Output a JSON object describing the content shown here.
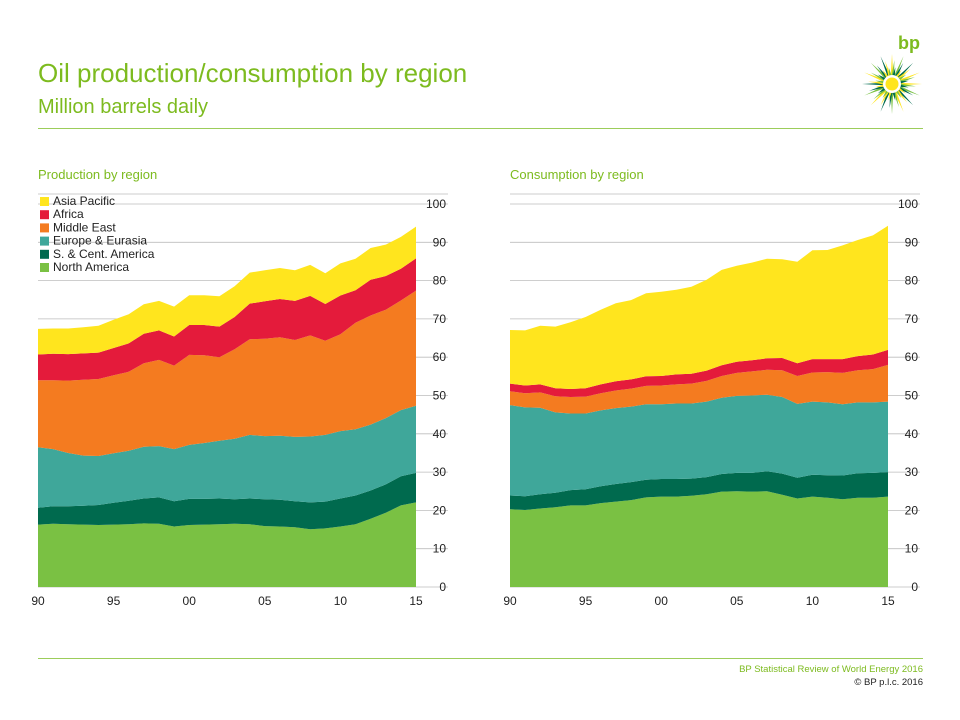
{
  "header": {
    "title": "Oil production/consumption by region",
    "subtitle": "Million barrels daily",
    "logo_text": "bp"
  },
  "footer": {
    "source": "BP Statistical Review of World Energy 2016",
    "copyright": "© BP p.l.c. 2016"
  },
  "colors": {
    "brand_green": "#7dbb1f",
    "north_america": "#7ac143",
    "sc_america": "#006a4e",
    "europe_eurasia": "#3fa79a",
    "middle_east": "#f47b20",
    "africa": "#e41b3b",
    "asia_pacific": "#ffe51e"
  },
  "chart_data": [
    {
      "type": "area",
      "stacked": true,
      "title": "Production by region",
      "x_tick_labels": [
        "90",
        "95",
        "00",
        "05",
        "10",
        "15"
      ],
      "y_tick_labels": [
        "0",
        "10",
        "20",
        "30",
        "40",
        "50",
        "60",
        "70",
        "80",
        "90",
        "100"
      ],
      "ylim": [
        0,
        100
      ],
      "xlim": [
        1990,
        2015
      ],
      "grid": true,
      "legend_position": "top-left",
      "x": [
        1990,
        1991,
        1992,
        1993,
        1994,
        1995,
        1996,
        1997,
        1998,
        1999,
        2000,
        2001,
        2002,
        2003,
        2004,
        2005,
        2006,
        2007,
        2008,
        2009,
        2010,
        2011,
        2012,
        2013,
        2014,
        2015
      ],
      "series": [
        {
          "name": "North America",
          "color": "#7ac143",
          "values": [
            16.3,
            16.5,
            16.4,
            16.3,
            16.2,
            16.3,
            16.4,
            16.6,
            16.5,
            15.8,
            16.2,
            16.3,
            16.4,
            16.5,
            16.4,
            15.9,
            15.8,
            15.6,
            15.1,
            15.3,
            15.8,
            16.4,
            17.8,
            19.4,
            21.3,
            22.1
          ]
        },
        {
          "name": "S. & Cent. America",
          "color": "#006a4e",
          "values": [
            4.4,
            4.6,
            4.7,
            4.9,
            5.2,
            5.7,
            6.1,
            6.5,
            6.9,
            6.6,
            6.8,
            6.7,
            6.7,
            6.4,
            6.7,
            7.0,
            7.0,
            6.8,
            7.0,
            7.0,
            7.3,
            7.5,
            7.4,
            7.4,
            7.6,
            7.7
          ]
        },
        {
          "name": "Europe & Eurasia",
          "color": "#3fa79a",
          "values": [
            15.8,
            14.9,
            13.9,
            13.1,
            12.8,
            12.9,
            13.1,
            13.5,
            13.4,
            13.6,
            14.1,
            14.6,
            15.1,
            15.8,
            16.6,
            16.5,
            16.7,
            16.8,
            17.2,
            17.4,
            17.6,
            17.3,
            17.2,
            17.3,
            17.3,
            17.5
          ]
        },
        {
          "name": "Middle East",
          "color": "#f47b20",
          "values": [
            17.5,
            18.0,
            18.9,
            19.8,
            20.1,
            20.4,
            20.6,
            21.8,
            22.5,
            21.8,
            23.5,
            22.9,
            21.8,
            23.4,
            25.0,
            25.4,
            25.7,
            25.3,
            26.4,
            24.6,
            25.3,
            27.8,
            28.5,
            28.3,
            28.6,
            30.1
          ]
        },
        {
          "name": "Africa",
          "color": "#e41b3b",
          "values": [
            6.7,
            6.9,
            6.9,
            6.9,
            6.9,
            7.1,
            7.4,
            7.7,
            7.7,
            7.6,
            7.8,
            7.9,
            8.0,
            8.4,
            9.3,
            9.8,
            10.0,
            10.2,
            10.3,
            9.6,
            10.1,
            8.5,
            9.3,
            8.8,
            8.3,
            8.4
          ]
        },
        {
          "name": "Asia Pacific",
          "color": "#ffe51e",
          "values": [
            6.7,
            6.6,
            6.7,
            6.8,
            7.0,
            7.4,
            7.6,
            7.7,
            7.7,
            7.8,
            7.8,
            7.8,
            7.9,
            8.0,
            8.1,
            8.1,
            8.1,
            8.0,
            8.1,
            8.0,
            8.4,
            8.2,
            8.3,
            8.2,
            8.3,
            8.3
          ]
        }
      ]
    },
    {
      "type": "area",
      "stacked": true,
      "title": "Consumption by region",
      "x_tick_labels": [
        "90",
        "95",
        "00",
        "05",
        "10",
        "15"
      ],
      "y_tick_labels": [
        "0",
        "10",
        "20",
        "30",
        "40",
        "50",
        "60",
        "70",
        "80",
        "90",
        "100"
      ],
      "ylim": [
        0,
        100
      ],
      "xlim": [
        1990,
        2015
      ],
      "grid": true,
      "legend_position": "none",
      "x": [
        1990,
        1991,
        1992,
        1993,
        1994,
        1995,
        1996,
        1997,
        1998,
        1999,
        2000,
        2001,
        2002,
        2003,
        2004,
        2005,
        2006,
        2007,
        2008,
        2009,
        2010,
        2011,
        2012,
        2013,
        2014,
        2015
      ],
      "series": [
        {
          "name": "North America",
          "color": "#7ac143",
          "values": [
            20.3,
            20.1,
            20.5,
            20.8,
            21.3,
            21.3,
            21.9,
            22.3,
            22.7,
            23.4,
            23.6,
            23.6,
            23.8,
            24.2,
            24.9,
            25.0,
            24.9,
            25.0,
            24.1,
            23.1,
            23.6,
            23.3,
            22.9,
            23.3,
            23.3,
            23.6
          ]
        },
        {
          "name": "S. & Cent. America",
          "color": "#006a4e",
          "values": [
            3.6,
            3.6,
            3.7,
            3.8,
            4.0,
            4.2,
            4.4,
            4.6,
            4.7,
            4.6,
            4.6,
            4.6,
            4.5,
            4.5,
            4.6,
            4.8,
            4.9,
            5.2,
            5.5,
            5.4,
            5.7,
            5.9,
            6.2,
            6.4,
            6.5,
            6.4
          ]
        },
        {
          "name": "Europe & Eurasia",
          "color": "#3fa79a",
          "values": [
            23.6,
            23.2,
            22.6,
            21.0,
            20.0,
            19.8,
            19.8,
            19.8,
            19.7,
            19.7,
            19.5,
            19.7,
            19.6,
            19.7,
            19.9,
            20.1,
            20.2,
            20.0,
            20.0,
            19.3,
            19.1,
            19.0,
            18.6,
            18.5,
            18.4,
            18.4
          ]
        },
        {
          "name": "Middle East",
          "color": "#f47b20",
          "values": [
            3.6,
            3.7,
            4.0,
            4.2,
            4.3,
            4.4,
            4.5,
            4.6,
            4.7,
            4.8,
            4.9,
            5.0,
            5.2,
            5.4,
            5.7,
            6.0,
            6.3,
            6.5,
            7.0,
            7.3,
            7.6,
            7.9,
            8.2,
            8.4,
            8.7,
            9.6
          ]
        },
        {
          "name": "Africa",
          "color": "#e41b3b",
          "values": [
            2.0,
            2.0,
            2.1,
            2.1,
            2.1,
            2.2,
            2.3,
            2.4,
            2.4,
            2.5,
            2.5,
            2.6,
            2.6,
            2.7,
            2.8,
            2.9,
            2.9,
            3.0,
            3.2,
            3.3,
            3.5,
            3.4,
            3.6,
            3.7,
            3.8,
            3.9
          ]
        },
        {
          "name": "Asia Pacific",
          "color": "#ffe51e",
          "values": [
            14.0,
            14.4,
            15.3,
            16.1,
            17.4,
            18.6,
            19.5,
            20.4,
            20.7,
            21.7,
            22.0,
            22.1,
            22.7,
            23.7,
            24.9,
            25.1,
            25.5,
            26.0,
            25.8,
            26.5,
            28.4,
            28.5,
            29.7,
            30.3,
            31.1,
            32.4
          ]
        }
      ]
    }
  ]
}
